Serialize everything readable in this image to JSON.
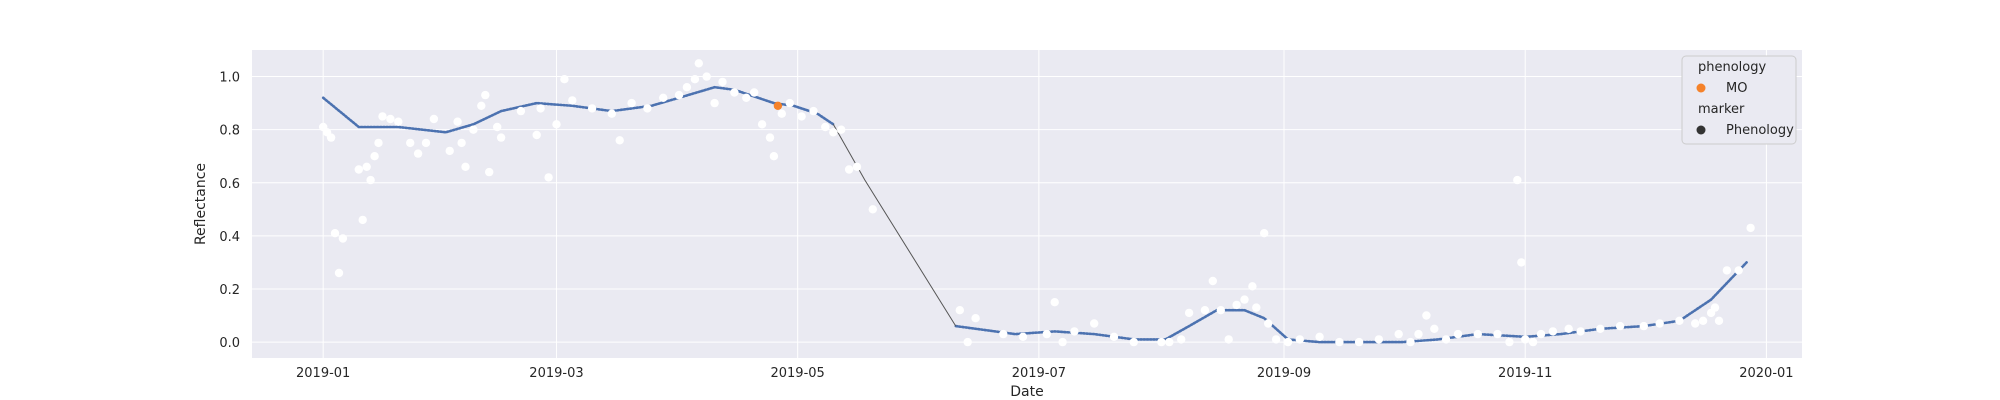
{
  "chart_data": {
    "type": "line",
    "title": "",
    "xlabel": "Date",
    "ylabel": "Reflectance",
    "x_axis_type": "date",
    "xlim": [
      "2018-12-14",
      "2020-01-10"
    ],
    "ylim": [
      -0.06,
      1.1
    ],
    "x_ticks": [
      "2019-01",
      "2019-03",
      "2019-05",
      "2019-07",
      "2019-09",
      "2019-11",
      "2020-01"
    ],
    "y_ticks": [
      "0.0",
      "0.2",
      "0.4",
      "0.6",
      "0.8",
      "1.0"
    ],
    "grid": true,
    "legend_placement": "top-right",
    "legend": {
      "phenology_title": "phenology",
      "phenology_item": "MO",
      "marker_title": "marker",
      "marker_item": "Phenology"
    },
    "colors": {
      "plot_bg": "#eaeaf2",
      "grid": "#ffffff",
      "smoothed_line": "#4c72b0",
      "thin_line": "#555555",
      "observations": "#ffffff",
      "phenology_point": "#f5822a",
      "legend_marker": "#333333"
    },
    "smoothed_curve": [
      [
        "2019-01-01",
        0.92
      ],
      [
        "2019-01-10",
        0.81
      ],
      [
        "2019-01-20",
        0.81
      ],
      [
        "2019-02-01",
        0.79
      ],
      [
        "2019-02-08",
        0.82
      ],
      [
        "2019-02-15",
        0.87
      ],
      [
        "2019-02-24",
        0.9
      ],
      [
        "2019-03-05",
        0.89
      ],
      [
        "2019-03-15",
        0.87
      ],
      [
        "2019-03-25",
        0.89
      ],
      [
        "2019-04-01",
        0.92
      ],
      [
        "2019-04-10",
        0.96
      ],
      [
        "2019-04-15",
        0.95
      ],
      [
        "2019-04-25",
        0.9
      ],
      [
        "2019-04-30",
        0.89
      ],
      [
        "2019-05-06",
        0.86
      ],
      [
        "2019-05-10",
        0.82
      ]
    ],
    "decline_segment": [
      [
        "2019-05-10",
        0.82
      ],
      [
        "2019-05-18",
        0.61
      ],
      [
        "2019-06-10",
        0.06
      ]
    ],
    "smoothed_curve_late": [
      [
        "2019-06-10",
        0.06
      ],
      [
        "2019-06-25",
        0.03
      ],
      [
        "2019-07-05",
        0.04
      ],
      [
        "2019-07-15",
        0.03
      ],
      [
        "2019-07-25",
        0.01
      ],
      [
        "2019-08-02",
        0.01
      ],
      [
        "2019-08-08",
        0.06
      ],
      [
        "2019-08-15",
        0.12
      ],
      [
        "2019-08-22",
        0.12
      ],
      [
        "2019-08-27",
        0.09
      ],
      [
        "2019-09-02",
        0.01
      ],
      [
        "2019-09-10",
        0.0
      ],
      [
        "2019-09-20",
        0.0
      ],
      [
        "2019-10-01",
        0.0
      ],
      [
        "2019-10-10",
        0.01
      ],
      [
        "2019-10-20",
        0.03
      ],
      [
        "2019-11-01",
        0.02
      ],
      [
        "2019-11-10",
        0.03
      ],
      [
        "2019-11-20",
        0.05
      ],
      [
        "2019-12-01",
        0.06
      ],
      [
        "2019-12-10",
        0.08
      ],
      [
        "2019-12-18",
        0.16
      ],
      [
        "2019-12-27",
        0.3
      ]
    ],
    "observations": [
      [
        "2019-01-01",
        0.81
      ],
      [
        "2019-01-02",
        0.79
      ],
      [
        "2019-01-03",
        0.77
      ],
      [
        "2019-01-04",
        0.41
      ],
      [
        "2019-01-05",
        0.26
      ],
      [
        "2019-01-06",
        0.39
      ],
      [
        "2019-01-10",
        0.65
      ],
      [
        "2019-01-11",
        0.46
      ],
      [
        "2019-01-12",
        0.66
      ],
      [
        "2019-01-13",
        0.61
      ],
      [
        "2019-01-14",
        0.7
      ],
      [
        "2019-01-15",
        0.75
      ],
      [
        "2019-01-16",
        0.85
      ],
      [
        "2019-01-18",
        0.84
      ],
      [
        "2019-01-20",
        0.83
      ],
      [
        "2019-01-23",
        0.75
      ],
      [
        "2019-01-25",
        0.71
      ],
      [
        "2019-01-27",
        0.75
      ],
      [
        "2019-01-29",
        0.84
      ],
      [
        "2019-02-02",
        0.72
      ],
      [
        "2019-02-04",
        0.83
      ],
      [
        "2019-02-05",
        0.75
      ],
      [
        "2019-02-06",
        0.66
      ],
      [
        "2019-02-08",
        0.8
      ],
      [
        "2019-02-10",
        0.89
      ],
      [
        "2019-02-11",
        0.93
      ],
      [
        "2019-02-12",
        0.64
      ],
      [
        "2019-02-14",
        0.81
      ],
      [
        "2019-02-15",
        0.77
      ],
      [
        "2019-02-20",
        0.87
      ],
      [
        "2019-02-24",
        0.78
      ],
      [
        "2019-02-25",
        0.88
      ],
      [
        "2019-02-27",
        0.62
      ],
      [
        "2019-03-01",
        0.82
      ],
      [
        "2019-03-03",
        0.99
      ],
      [
        "2019-03-05",
        0.91
      ],
      [
        "2019-03-10",
        0.88
      ],
      [
        "2019-03-15",
        0.86
      ],
      [
        "2019-03-17",
        0.76
      ],
      [
        "2019-03-20",
        0.9
      ],
      [
        "2019-03-24",
        0.88
      ],
      [
        "2019-03-28",
        0.92
      ],
      [
        "2019-04-01",
        0.93
      ],
      [
        "2019-04-03",
        0.96
      ],
      [
        "2019-04-05",
        0.99
      ],
      [
        "2019-04-06",
        1.05
      ],
      [
        "2019-04-08",
        1.0
      ],
      [
        "2019-04-10",
        0.9
      ],
      [
        "2019-04-12",
        0.98
      ],
      [
        "2019-04-15",
        0.94
      ],
      [
        "2019-04-18",
        0.92
      ],
      [
        "2019-04-20",
        0.94
      ],
      [
        "2019-04-22",
        0.82
      ],
      [
        "2019-04-24",
        0.77
      ],
      [
        "2019-04-25",
        0.7
      ],
      [
        "2019-04-27",
        0.86
      ],
      [
        "2019-04-29",
        0.9
      ],
      [
        "2019-05-02",
        0.85
      ],
      [
        "2019-05-05",
        0.87
      ],
      [
        "2019-05-08",
        0.81
      ],
      [
        "2019-05-10",
        0.79
      ],
      [
        "2019-05-12",
        0.8
      ],
      [
        "2019-05-14",
        0.65
      ],
      [
        "2019-05-16",
        0.66
      ],
      [
        "2019-05-20",
        0.5
      ],
      [
        "2019-06-11",
        0.12
      ],
      [
        "2019-06-13",
        0.0
      ],
      [
        "2019-06-15",
        0.09
      ],
      [
        "2019-06-22",
        0.03
      ],
      [
        "2019-06-27",
        0.02
      ],
      [
        "2019-07-03",
        0.03
      ],
      [
        "2019-07-05",
        0.15
      ],
      [
        "2019-07-07",
        0.0
      ],
      [
        "2019-07-10",
        0.04
      ],
      [
        "2019-07-15",
        0.07
      ],
      [
        "2019-07-20",
        0.02
      ],
      [
        "2019-07-25",
        0.0
      ],
      [
        "2019-08-01",
        0.0
      ],
      [
        "2019-08-03",
        0.0
      ],
      [
        "2019-08-06",
        0.01
      ],
      [
        "2019-08-08",
        0.11
      ],
      [
        "2019-08-12",
        0.12
      ],
      [
        "2019-08-14",
        0.23
      ],
      [
        "2019-08-16",
        0.12
      ],
      [
        "2019-08-18",
        0.01
      ],
      [
        "2019-08-20",
        0.14
      ],
      [
        "2019-08-22",
        0.16
      ],
      [
        "2019-08-24",
        0.21
      ],
      [
        "2019-08-25",
        0.13
      ],
      [
        "2019-08-27",
        0.41
      ],
      [
        "2019-08-28",
        0.07
      ],
      [
        "2019-08-30",
        0.01
      ],
      [
        "2019-09-02",
        0.0
      ],
      [
        "2019-09-05",
        0.01
      ],
      [
        "2019-09-10",
        0.02
      ],
      [
        "2019-09-15",
        0.0
      ],
      [
        "2019-09-20",
        0.0
      ],
      [
        "2019-09-25",
        0.01
      ],
      [
        "2019-09-30",
        0.03
      ],
      [
        "2019-10-03",
        0.0
      ],
      [
        "2019-10-05",
        0.03
      ],
      [
        "2019-10-07",
        0.1
      ],
      [
        "2019-10-09",
        0.05
      ],
      [
        "2019-10-12",
        0.01
      ],
      [
        "2019-10-15",
        0.03
      ],
      [
        "2019-10-20",
        0.03
      ],
      [
        "2019-10-25",
        0.03
      ],
      [
        "2019-10-28",
        0.0
      ],
      [
        "2019-10-30",
        0.61
      ],
      [
        "2019-10-31",
        0.3
      ],
      [
        "2019-11-01",
        0.01
      ],
      [
        "2019-11-03",
        0.0
      ],
      [
        "2019-11-05",
        0.03
      ],
      [
        "2019-11-08",
        0.04
      ],
      [
        "2019-11-12",
        0.05
      ],
      [
        "2019-11-15",
        0.04
      ],
      [
        "2019-11-20",
        0.05
      ],
      [
        "2019-11-25",
        0.06
      ],
      [
        "2019-12-01",
        0.06
      ],
      [
        "2019-12-05",
        0.07
      ],
      [
        "2019-12-10",
        0.08
      ],
      [
        "2019-12-14",
        0.07
      ],
      [
        "2019-12-16",
        0.08
      ],
      [
        "2019-12-18",
        0.11
      ],
      [
        "2019-12-19",
        0.13
      ],
      [
        "2019-12-20",
        0.08
      ],
      [
        "2019-12-22",
        0.27
      ],
      [
        "2019-12-25",
        0.27
      ],
      [
        "2019-12-28",
        0.43
      ]
    ],
    "phenology_points": [
      {
        "label": "MO",
        "x": "2019-04-26",
        "y": 0.89
      }
    ]
  }
}
